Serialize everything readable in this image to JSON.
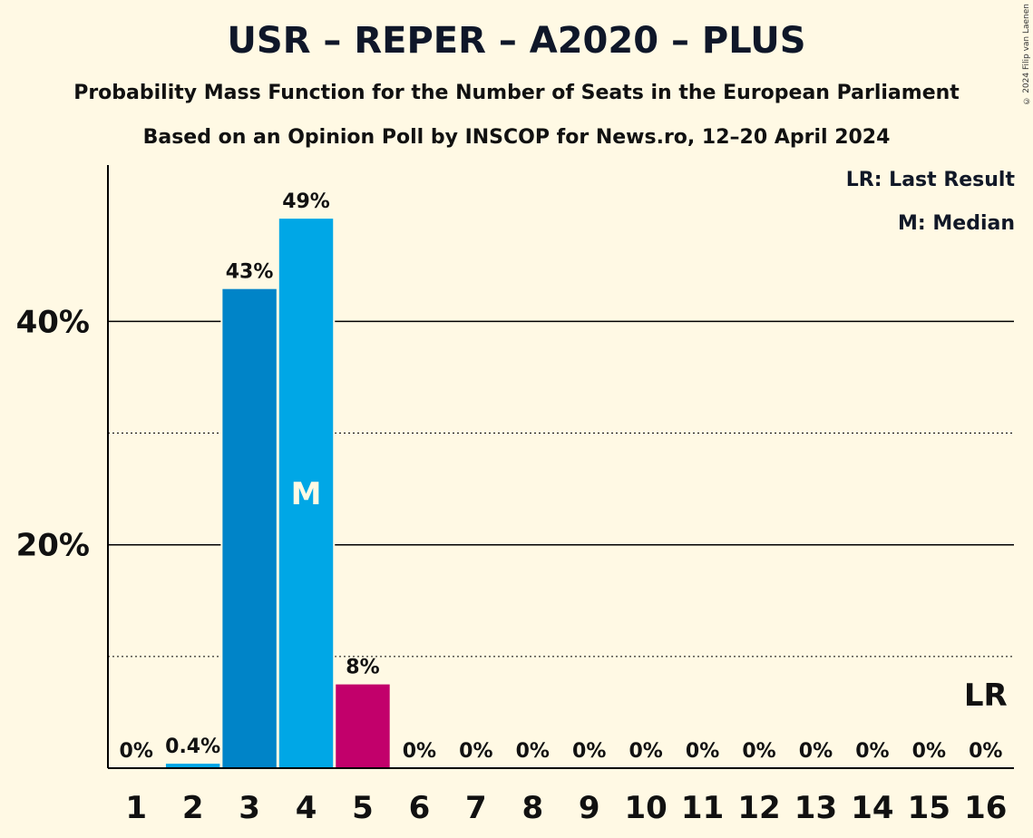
{
  "header": {
    "title": "USR – REPER – A2020 – PLUS",
    "subtitle1": "Probability Mass Function for the Number of Seats in the European Parliament",
    "subtitle2": "Based on an Opinion Poll by INSCOP for News.ro, 12–20 April 2024",
    "copyright": "© 2024 Filip van Laenen"
  },
  "legend": {
    "last_result": "LR: Last Result",
    "median": "M: Median"
  },
  "chart_data": {
    "type": "bar",
    "categories": [
      "1",
      "2",
      "3",
      "4",
      "5",
      "6",
      "7",
      "8",
      "9",
      "10",
      "11",
      "12",
      "13",
      "14",
      "15",
      "16"
    ],
    "values": [
      0,
      0.4,
      42.9,
      49.2,
      7.5,
      0,
      0,
      0,
      0,
      0,
      0,
      0,
      0,
      0,
      0,
      0
    ],
    "labels": [
      "0%",
      "0.4%",
      "43%",
      "49%",
      "8%",
      "0%",
      "0%",
      "0%",
      "0%",
      "0%",
      "0%",
      "0%",
      "0%",
      "0%",
      "0%",
      "0%"
    ],
    "colors": [
      "#0084C8",
      "#00A7E6",
      "#0084C8",
      "#00A7E6",
      "#C2006B",
      "#0084C8",
      "#00A7E6",
      "#0084C8",
      "#00A7E6",
      "#0084C8",
      "#00A7E6",
      "#0084C8",
      "#00A7E6",
      "#0084C8",
      "#00A7E6",
      "#0084C8"
    ],
    "median_seats": "4",
    "median_label": "M",
    "last_result_seats": "16",
    "last_result_label": "LR",
    "yticks": [
      {
        "value": 20,
        "label": "20%"
      },
      {
        "value": 40,
        "label": "40%"
      }
    ],
    "dotted_gridlines": [
      10,
      30
    ],
    "ylim": [
      0,
      54
    ],
    "xlabel": "",
    "ylabel": ""
  }
}
